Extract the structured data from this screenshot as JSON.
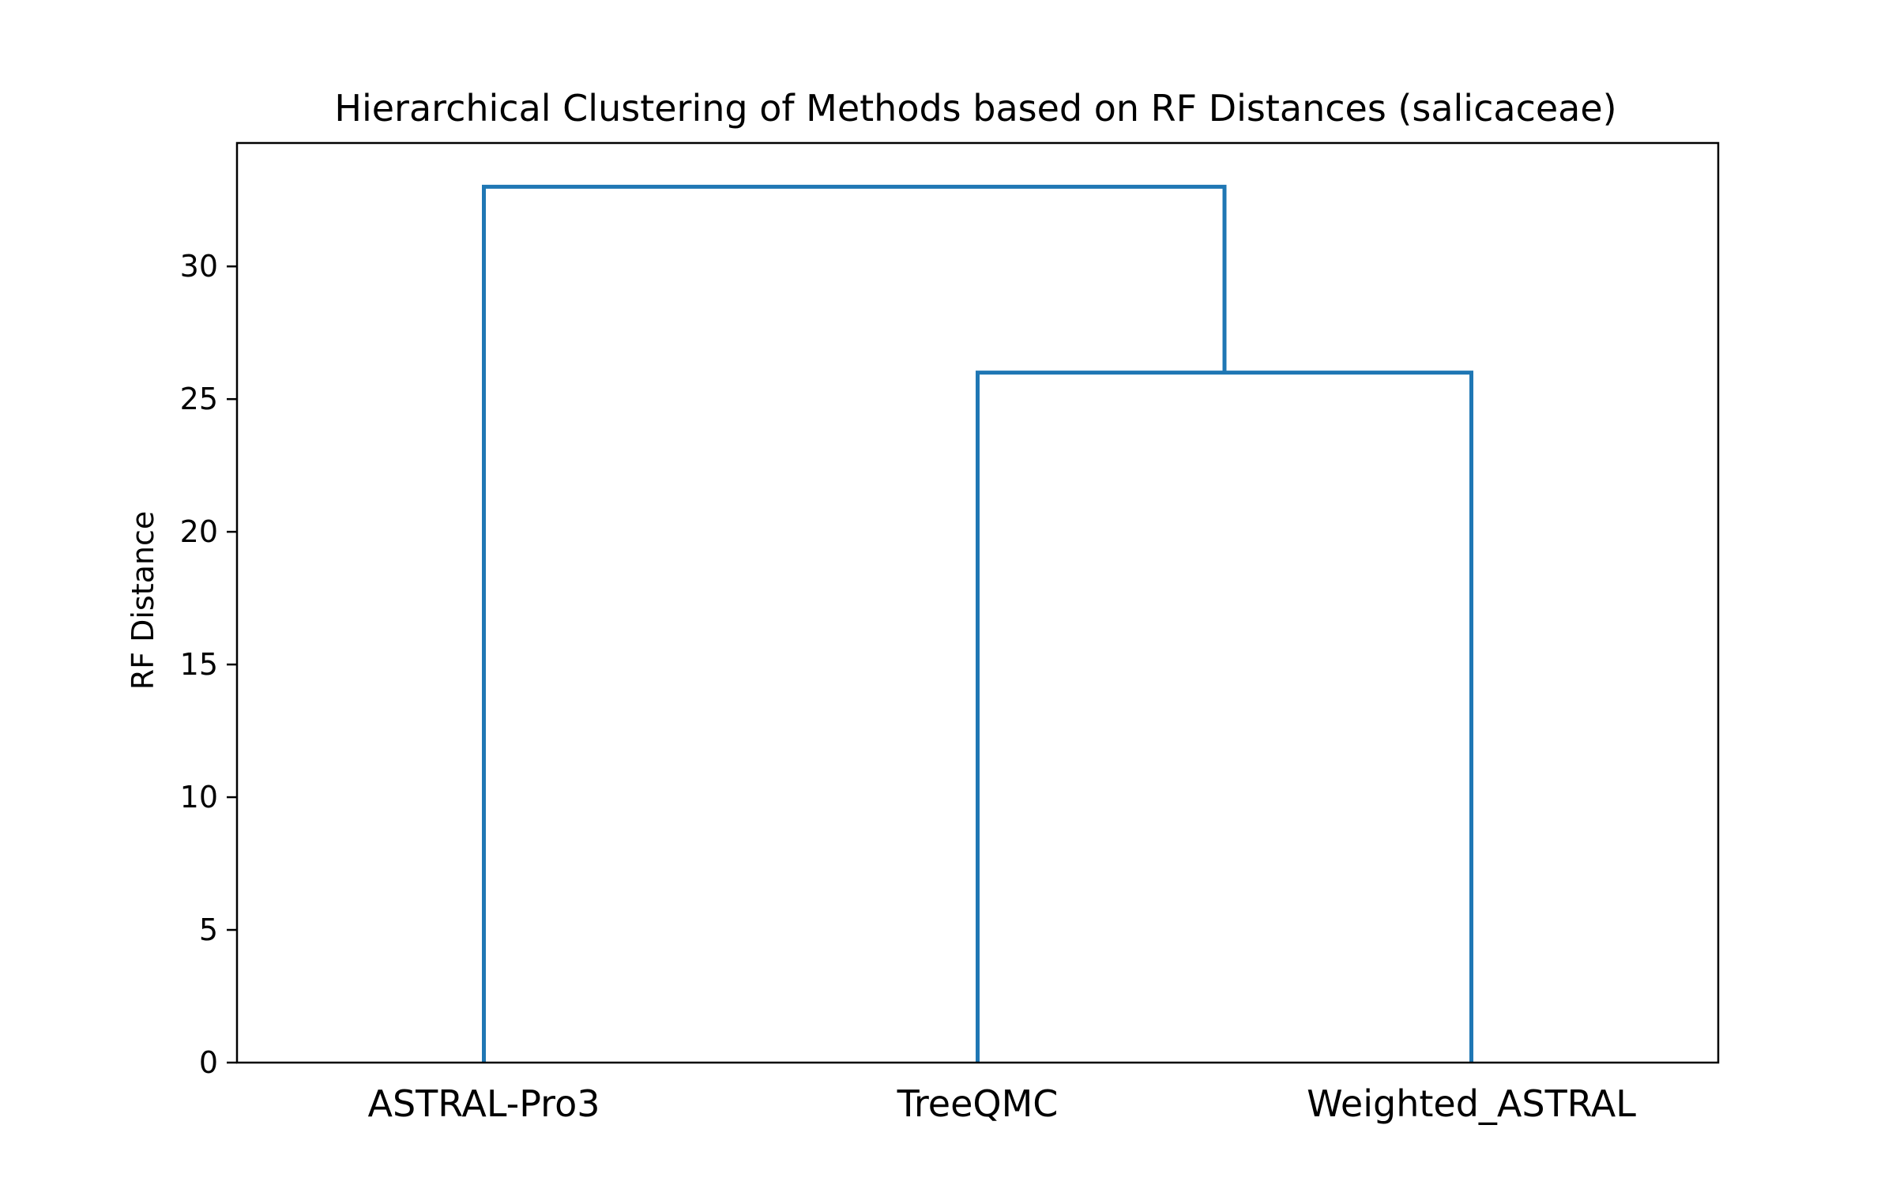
{
  "chart_data": {
    "type": "dendrogram",
    "title": "Hierarchical Clustering of Methods based on RF Distances (salicaceae)",
    "xlabel": "",
    "ylabel": "RF Distance",
    "leaves": [
      "ASTRAL-Pro3",
      "TreeQMC",
      "Weighted_ASTRAL"
    ],
    "merges": [
      {
        "left": "TreeQMC",
        "right": "Weighted_ASTRAL",
        "height": 26
      },
      {
        "left": "ASTRAL-Pro3",
        "right": "cluster(TreeQMC, Weighted_ASTRAL)",
        "height": 33
      }
    ],
    "y_ticks": [
      0,
      5,
      10,
      15,
      20,
      25,
      30
    ],
    "ylim": [
      0,
      34.65
    ],
    "line_color": "#1f77b4",
    "grid": false,
    "legend": "none"
  }
}
